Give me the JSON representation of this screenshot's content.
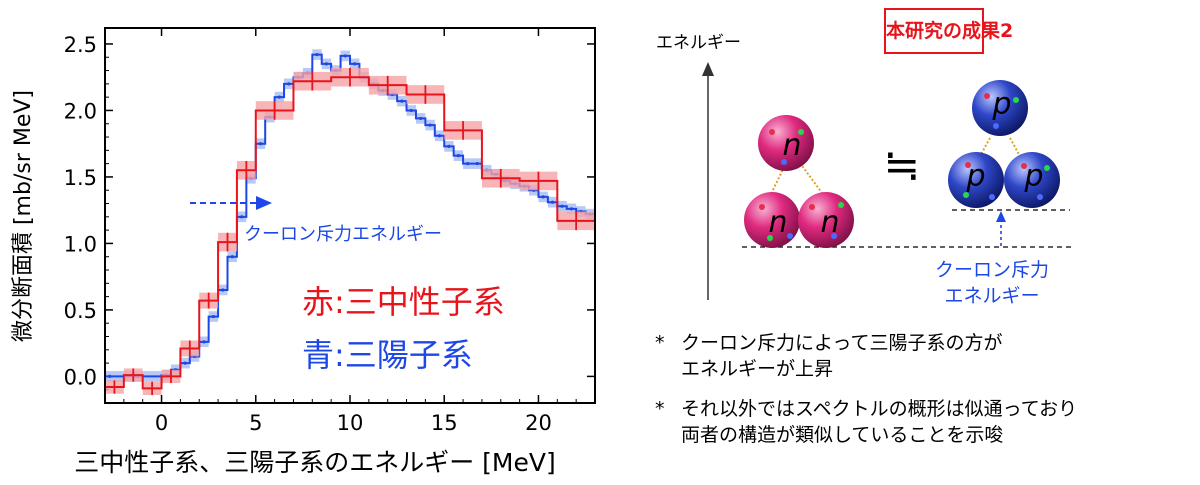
{
  "chart_data": {
    "type": "line",
    "xlabel": "三中性子系、三陽子系のエネルギー [MeV]",
    "ylabel": "微分断面積 [mb/sr MeV]",
    "xlim": [
      -3,
      23
    ],
    "ylim": [
      -0.2,
      2.62
    ],
    "x_ticks": [
      0,
      5,
      10,
      15,
      20
    ],
    "y_ticks": [
      0.0,
      0.5,
      1.0,
      1.5,
      2.0,
      2.5
    ],
    "x_tick_labels": [
      "0",
      "5",
      "10",
      "15",
      "20"
    ],
    "y_tick_labels": [
      "0.0",
      "0.5",
      "1.0",
      "1.5",
      "2.0",
      "2.5"
    ],
    "legend": {
      "red": "赤:三中性子系",
      "blue": "青:三陽子系"
    },
    "annotation": "クーロン斥力エネルギー",
    "series": [
      {
        "color": "#e8141c",
        "band_color": "#f6a3a6",
        "bin_edges": [
          -3,
          -2,
          -1,
          0,
          1,
          2,
          3,
          4,
          5,
          7,
          9,
          11,
          13,
          15,
          17,
          19,
          21,
          23
        ],
        "values": [
          -0.08,
          0.01,
          -0.09,
          0.0,
          0.21,
          0.57,
          1.01,
          1.55,
          2.0,
          2.22,
          2.25,
          2.19,
          2.12,
          1.85,
          1.49,
          1.47,
          1.17
        ],
        "errors": [
          0.05,
          0.05,
          0.05,
          0.05,
          0.06,
          0.06,
          0.07,
          0.07,
          0.07,
          0.07,
          0.07,
          0.07,
          0.07,
          0.07,
          0.07,
          0.07,
          0.07
        ]
      },
      {
        "color": "#1d47e6",
        "band_color": "#aabff2",
        "x": [
          -3,
          -1.5,
          0,
          0.5,
          1,
          1.5,
          2,
          2.5,
          3,
          3.5,
          4,
          4.5,
          5,
          5.5,
          6,
          6.5,
          7,
          7.5,
          8,
          8.5,
          9,
          9.5,
          10,
          10.5,
          11,
          11.5,
          12,
          12.5,
          13,
          13.5,
          14,
          14.5,
          15,
          15.5,
          16,
          16.5,
          17,
          17.5,
          18,
          18.5,
          19,
          19.5,
          20,
          20.5,
          21,
          21.5,
          22,
          22.5,
          23
        ],
        "y": [
          0.0,
          0.0,
          0.01,
          0.05,
          0.1,
          0.15,
          0.26,
          0.45,
          0.65,
          0.9,
          1.2,
          1.49,
          1.75,
          1.95,
          2.1,
          2.2,
          2.25,
          2.28,
          2.42,
          2.35,
          2.3,
          2.41,
          2.35,
          2.25,
          2.2,
          2.15,
          2.12,
          2.07,
          2.0,
          1.94,
          1.89,
          1.81,
          1.73,
          1.66,
          1.6,
          1.6,
          1.55,
          1.52,
          1.47,
          1.45,
          1.43,
          1.4,
          1.35,
          1.31,
          1.28,
          1.26,
          1.24,
          1.22,
          1.19
        ],
        "band": 0.04
      }
    ]
  },
  "diagram": {
    "energy_axis_label": "エネルギー",
    "result_title": "本研究の成果2",
    "neutron_label": "n",
    "proton_label": "p",
    "approx_symbol": "≒",
    "coulomb_label_line1": "クーロン斥力",
    "coulomb_label_line2": "エネルギー"
  },
  "notes": [
    {
      "star": "*",
      "line1": "クーロン斥力によって三陽子系の方が",
      "line2": "エネルギーが上昇"
    },
    {
      "star": "*",
      "line1": "それ以外ではスペクトルの概形は似通っており",
      "line2": "両者の構造が類似していることを示唆"
    }
  ],
  "colors": {
    "red": "#e8141c",
    "blue": "#1d47e6",
    "neutron_fill": "#e02a80",
    "proton_fill": "#2f47c8"
  }
}
